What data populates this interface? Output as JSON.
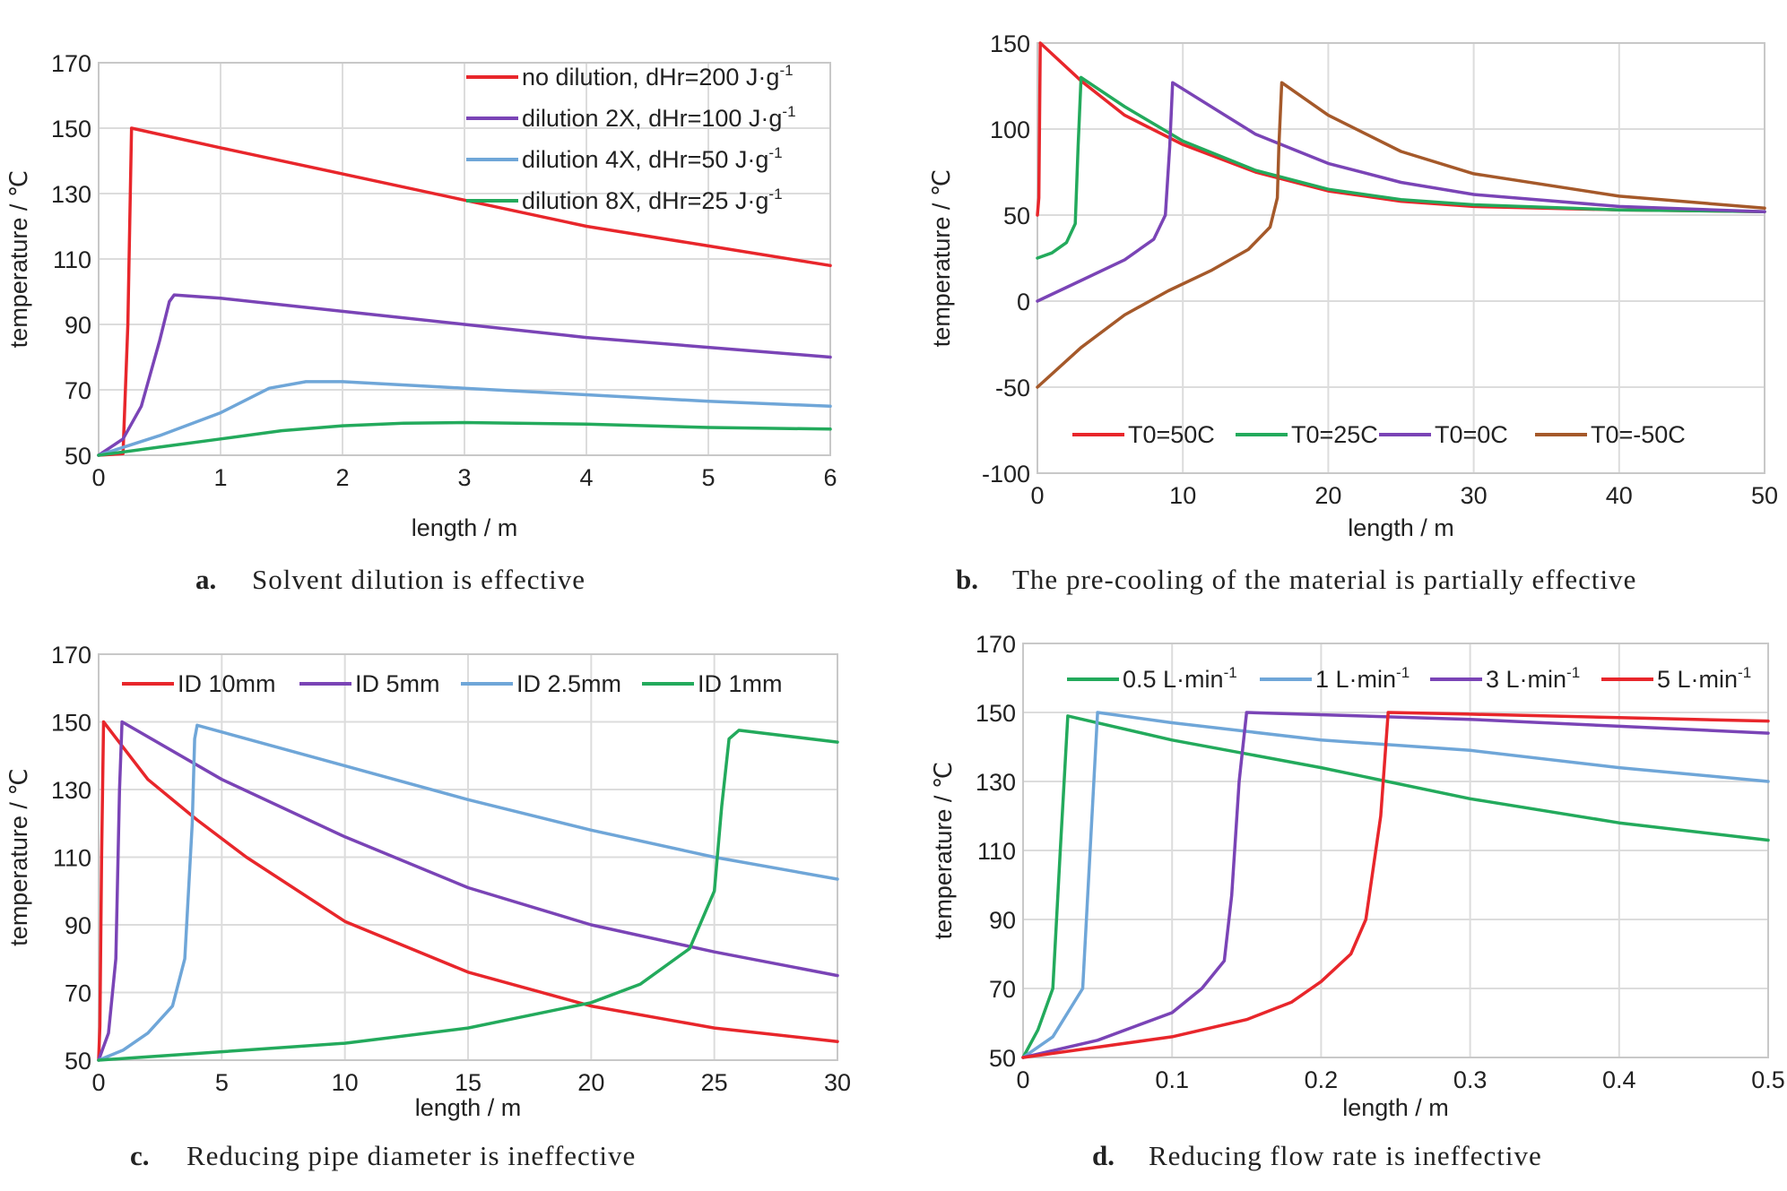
{
  "colors": {
    "red": "#e8262b",
    "purple": "#7a44b6",
    "blue": "#6fa6d8",
    "green": "#23aa5c",
    "brown": "#a5592a",
    "grid": "#dcdcdc",
    "frame": "#c8c8c8"
  },
  "chart_data": [
    {
      "id": "a",
      "type": "line",
      "caption_letter": "a.",
      "caption": "Solvent dilution is effective",
      "xlabel": "length / m",
      "ylabel": "temperature / ℃",
      "xlim": [
        0,
        6
      ],
      "ylim": [
        50,
        170
      ],
      "xticks": [
        0,
        1,
        2,
        3,
        4,
        5,
        6
      ],
      "yticks": [
        50,
        70,
        90,
        110,
        130,
        150,
        170
      ],
      "grid": true,
      "legend": "top-right",
      "series": [
        {
          "name": "no dilution, dHr=200 J·g",
          "sup": "-1",
          "color": "red",
          "x": [
            0,
            0.2,
            0.24,
            0.27,
            1,
            2,
            3,
            4,
            5,
            6
          ],
          "y": [
            50,
            50.5,
            90,
            150,
            144,
            136,
            128,
            120,
            114,
            108
          ]
        },
        {
          "name": "dilution 2X, dHr=100 J·g",
          "sup": "-1",
          "color": "purple",
          "x": [
            0,
            0.2,
            0.35,
            0.5,
            0.58,
            0.62,
            1,
            2,
            3,
            4,
            5,
            6
          ],
          "y": [
            50,
            55,
            65,
            85,
            97,
            99,
            98,
            94,
            90,
            86,
            83,
            80
          ]
        },
        {
          "name": "dilution 4X, dHr=50 J·g",
          "sup": "-1",
          "color": "blue",
          "x": [
            0,
            0.5,
            1,
            1.4,
            1.7,
            2,
            3,
            4,
            5,
            6
          ],
          "y": [
            50,
            56,
            63,
            70.5,
            72.5,
            72.5,
            70.5,
            68.5,
            66.5,
            65
          ]
        },
        {
          "name": "dilution 8X, dHr=25 J·g",
          "sup": "-1",
          "color": "green",
          "x": [
            0,
            0.5,
            1,
            1.5,
            2,
            2.5,
            3,
            4,
            5,
            6
          ],
          "y": [
            50,
            52.5,
            55,
            57.5,
            59,
            59.8,
            60,
            59.5,
            58.5,
            58
          ]
        }
      ]
    },
    {
      "id": "b",
      "type": "line",
      "caption_letter": "b.",
      "caption": "The pre-cooling of the material is partially effective",
      "xlabel": "length / m",
      "ylabel": "temperature / ℃",
      "xlim": [
        0,
        50
      ],
      "ylim": [
        -100,
        150
      ],
      "xticks": [
        0,
        10,
        20,
        30,
        40,
        50
      ],
      "yticks": [
        -100,
        -50,
        0,
        50,
        100,
        150
      ],
      "grid": true,
      "legend": "bottom",
      "series": [
        {
          "name": "T0=50C",
          "color": "red",
          "x": [
            0,
            0.1,
            0.2,
            3,
            6,
            10,
            15,
            20,
            25,
            30,
            40,
            50
          ],
          "y": [
            50,
            60,
            150,
            128,
            108,
            91,
            75,
            64,
            58,
            55,
            53,
            52
          ]
        },
        {
          "name": "T0=25C",
          "color": "green",
          "x": [
            0,
            1,
            2,
            2.6,
            2.8,
            3,
            6,
            10,
            15,
            20,
            25,
            30,
            40,
            50
          ],
          "y": [
            25,
            28,
            34,
            45,
            90,
            130,
            113,
            93,
            76,
            65,
            59,
            56,
            53,
            52
          ]
        },
        {
          "name": "T0=0C",
          "color": "purple",
          "x": [
            0,
            3,
            6,
            8,
            8.8,
            9.1,
            9.3,
            15,
            20,
            25,
            30,
            40,
            50
          ],
          "y": [
            0,
            12,
            24,
            36,
            50,
            90,
            127,
            97,
            80,
            69,
            62,
            55,
            52
          ]
        },
        {
          "name": "T0=-50C",
          "color": "brown",
          "x": [
            0,
            3,
            6,
            9,
            12,
            14.5,
            16,
            16.5,
            16.6,
            16.8,
            20,
            25,
            30,
            40,
            50
          ],
          "y": [
            -50,
            -27,
            -8,
            6,
            18,
            30,
            43,
            60,
            90,
            127,
            108,
            87,
            74,
            61,
            54
          ]
        }
      ]
    },
    {
      "id": "c",
      "type": "line",
      "caption_letter": "c.",
      "caption": "Reducing pipe diameter is ineffective",
      "xlabel": "length / m",
      "ylabel": "temperature / ℃",
      "xlim": [
        0,
        30
      ],
      "ylim": [
        50,
        170
      ],
      "xticks": [
        0,
        5,
        10,
        15,
        20,
        25,
        30
      ],
      "yticks": [
        50,
        70,
        90,
        110,
        130,
        150,
        170
      ],
      "grid": true,
      "legend": "top",
      "series": [
        {
          "name": "ID 10mm",
          "color": "red",
          "x": [
            0,
            0.05,
            0.12,
            0.2,
            2,
            4,
            6,
            10,
            15,
            20,
            25,
            30
          ],
          "y": [
            50,
            60,
            110,
            150,
            133,
            121,
            110,
            91,
            76,
            66,
            59.5,
            55.5
          ]
        },
        {
          "name": "ID 5mm",
          "color": "purple",
          "x": [
            0,
            0.4,
            0.7,
            0.85,
            0.95,
            5,
            10,
            15,
            20,
            25,
            30
          ],
          "y": [
            50,
            58,
            80,
            130,
            150,
            133,
            116,
            101,
            90,
            82,
            75
          ]
        },
        {
          "name": "ID 2.5mm",
          "color": "blue",
          "x": [
            0,
            1,
            2,
            3,
            3.5,
            3.8,
            3.9,
            4,
            10,
            15,
            20,
            25,
            30
          ],
          "y": [
            50,
            53,
            58,
            66,
            80,
            120,
            145,
            149,
            137,
            127,
            118,
            110,
            103.5
          ]
        },
        {
          "name": "ID 1mm",
          "color": "green",
          "x": [
            0,
            5,
            10,
            15,
            20,
            22,
            24,
            25,
            25.3,
            25.6,
            26,
            30
          ],
          "y": [
            50,
            52.5,
            55,
            59.5,
            67,
            72.5,
            83,
            100,
            125,
            145,
            147.5,
            144
          ]
        }
      ]
    },
    {
      "id": "d",
      "type": "line",
      "caption_letter": "d.",
      "caption": "Reducing flow rate is ineffective",
      "xlabel": "length / m",
      "ylabel": "temperature / ℃",
      "xlim": [
        0,
        0.5
      ],
      "ylim": [
        50,
        170
      ],
      "xticks": [
        0,
        0.1,
        0.2,
        0.3,
        0.4,
        0.5
      ],
      "yticks": [
        50,
        70,
        90,
        110,
        130,
        150,
        170
      ],
      "grid": true,
      "legend": "top",
      "series": [
        {
          "name": "0.5 L·min",
          "sup": "-1",
          "color": "green",
          "x": [
            0,
            0.01,
            0.02,
            0.025,
            0.03,
            0.1,
            0.2,
            0.3,
            0.4,
            0.5
          ],
          "y": [
            50,
            58,
            70,
            110,
            149,
            142,
            134,
            125,
            118,
            113
          ]
        },
        {
          "name": "1 L·min",
          "sup": "-1",
          "color": "blue",
          "x": [
            0,
            0.02,
            0.04,
            0.045,
            0.05,
            0.1,
            0.2,
            0.3,
            0.4,
            0.5
          ],
          "y": [
            50,
            56,
            70,
            110,
            150,
            147,
            142,
            139,
            134,
            130
          ]
        },
        {
          "name": "3 L·min",
          "sup": "-1",
          "color": "purple",
          "x": [
            0,
            0.05,
            0.1,
            0.12,
            0.135,
            0.14,
            0.145,
            0.15,
            0.3,
            0.4,
            0.5
          ],
          "y": [
            50,
            55,
            63,
            70,
            78,
            97,
            130,
            150,
            148,
            146,
            144
          ]
        },
        {
          "name": "5 L·min",
          "sup": "-1",
          "color": "red",
          "x": [
            0,
            0.1,
            0.15,
            0.18,
            0.2,
            0.22,
            0.23,
            0.24,
            0.245,
            0.3,
            0.4,
            0.5
          ],
          "y": [
            50,
            56,
            61,
            66,
            72,
            80,
            90,
            120,
            150,
            149.5,
            148.5,
            147.5
          ]
        }
      ]
    }
  ]
}
